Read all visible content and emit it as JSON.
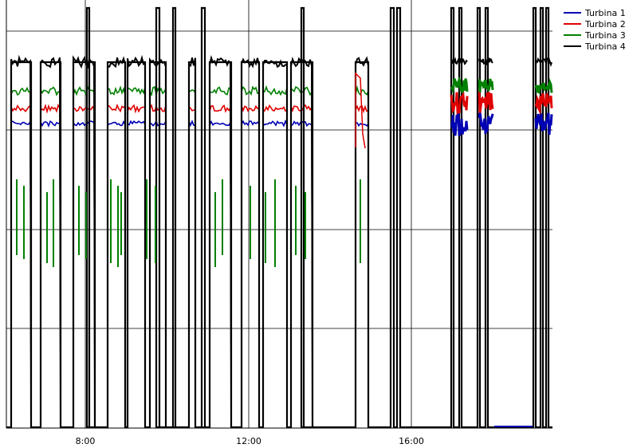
{
  "chart_data": {
    "type": "line",
    "title": "",
    "xlabel": "",
    "ylabel": "",
    "x_ticks": [
      "8:00",
      "12:00",
      "16:00"
    ],
    "legend_position": "top-right",
    "grid": true,
    "series": [
      {
        "name": "Turbina 1",
        "color": "#0000b4"
      },
      {
        "name": "Turbina 2",
        "color": "#e00000"
      },
      {
        "name": "Turbina 3",
        "color": "#008000"
      },
      {
        "name": "Turbina 4",
        "color": "#000000"
      }
    ]
  }
}
